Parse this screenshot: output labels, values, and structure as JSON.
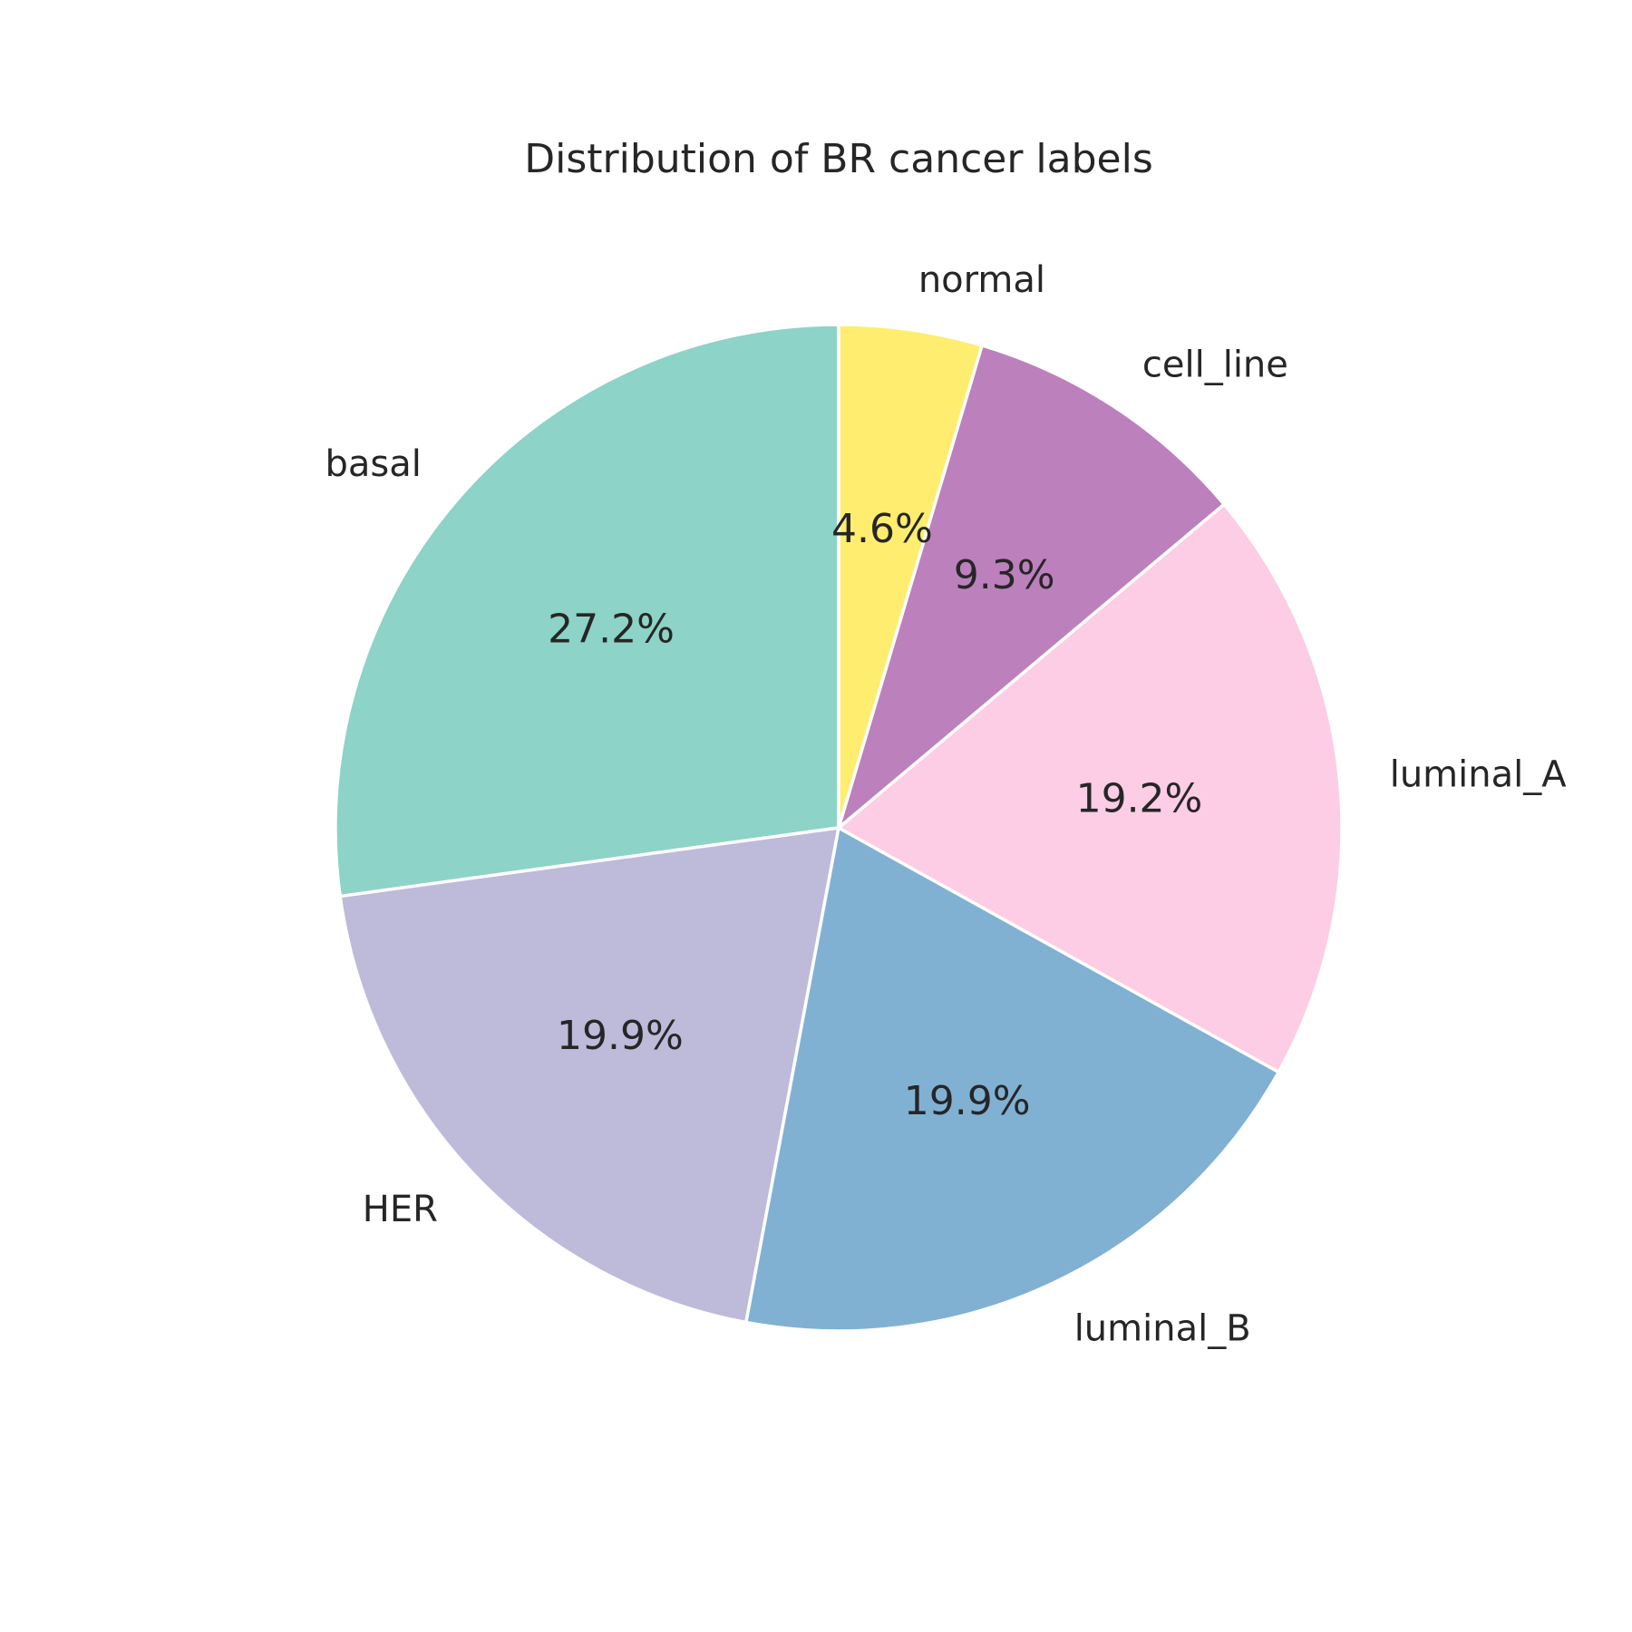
{
  "chart_data": {
    "type": "pie",
    "title": "Distribution of BR cancer labels",
    "start_angle_deg": 90,
    "direction": "counterclockwise",
    "slices": [
      {
        "label": "basal",
        "pct_label": "27.2%",
        "value": 27.2,
        "color": "#8dd3c7"
      },
      {
        "label": "HER",
        "pct_label": "19.9%",
        "value": 19.9,
        "color": "#bebada"
      },
      {
        "label": "luminal_B",
        "pct_label": "19.9%",
        "value": 19.9,
        "color": "#80b1d3"
      },
      {
        "label": "luminal_A",
        "pct_label": "19.2%",
        "value": 19.2,
        "color": "#fccde5"
      },
      {
        "label": "cell_line",
        "pct_label": "9.3%",
        "value": 9.3,
        "color": "#bc80bd"
      },
      {
        "label": "normal",
        "pct_label": "4.6%",
        "value": 4.6,
        "color": "#ffed6f"
      }
    ]
  }
}
